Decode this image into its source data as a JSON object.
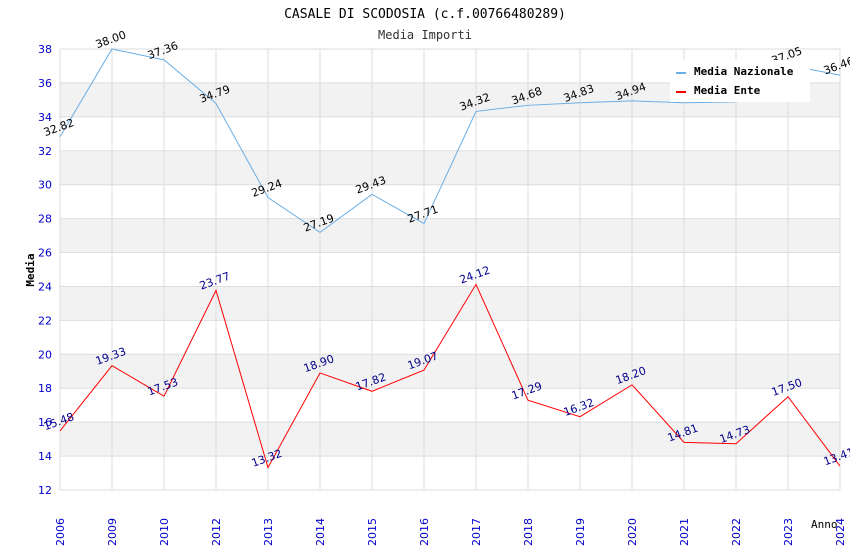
{
  "chart_data": {
    "type": "line",
    "title": "CASALE DI SCODOSIA (c.f.00766480289)",
    "subtitle": "Media Importi",
    "xlabel": "Anno",
    "ylabel": "Media",
    "ylim": [
      12,
      38
    ],
    "yticks": [
      12,
      14,
      16,
      18,
      20,
      22,
      24,
      26,
      28,
      30,
      32,
      34,
      36,
      38
    ],
    "grid": true,
    "legend_position": "top-right",
    "categories": [
      "2006",
      "2009",
      "2010",
      "2012",
      "2013",
      "2014",
      "2015",
      "2016",
      "2017",
      "2018",
      "2019",
      "2020",
      "2021",
      "2022",
      "2023",
      "2024"
    ],
    "series": [
      {
        "name": "Media Nazionale",
        "color": "#6aaee6",
        "label_color": "#000000",
        "values": [
          32.82,
          38.0,
          37.36,
          34.79,
          29.24,
          27.19,
          29.43,
          27.71,
          34.32,
          34.68,
          34.83,
          34.94,
          34.83,
          34.88,
          37.05,
          36.46
        ],
        "labels": [
          "32.82",
          "38.00",
          "37.36",
          "34.79",
          "29.24",
          "27.19",
          "29.43",
          "27.71",
          "34.32",
          "34.68",
          "34.83",
          "34.94",
          "",
          "",
          "37.05",
          "36.46"
        ]
      },
      {
        "name": "Media Ente",
        "color": "#ff0000",
        "label_color": "#00008b",
        "values": [
          15.48,
          19.33,
          17.53,
          23.77,
          13.32,
          18.9,
          17.82,
          19.07,
          24.12,
          17.29,
          16.32,
          18.2,
          14.81,
          14.73,
          17.5,
          13.41
        ],
        "labels": [
          "15.48",
          "19.33",
          "17.53",
          "23.77",
          "13.32",
          "18.90",
          "17.82",
          "19.07",
          "24.12",
          "17.29",
          "16.32",
          "18.20",
          "14.81",
          "14.73",
          "17.50",
          "13.41"
        ]
      }
    ]
  },
  "colors": {
    "axis_tick_text": "#0000cc",
    "band": "#f2f2f2",
    "gridline": "#dddddd"
  }
}
